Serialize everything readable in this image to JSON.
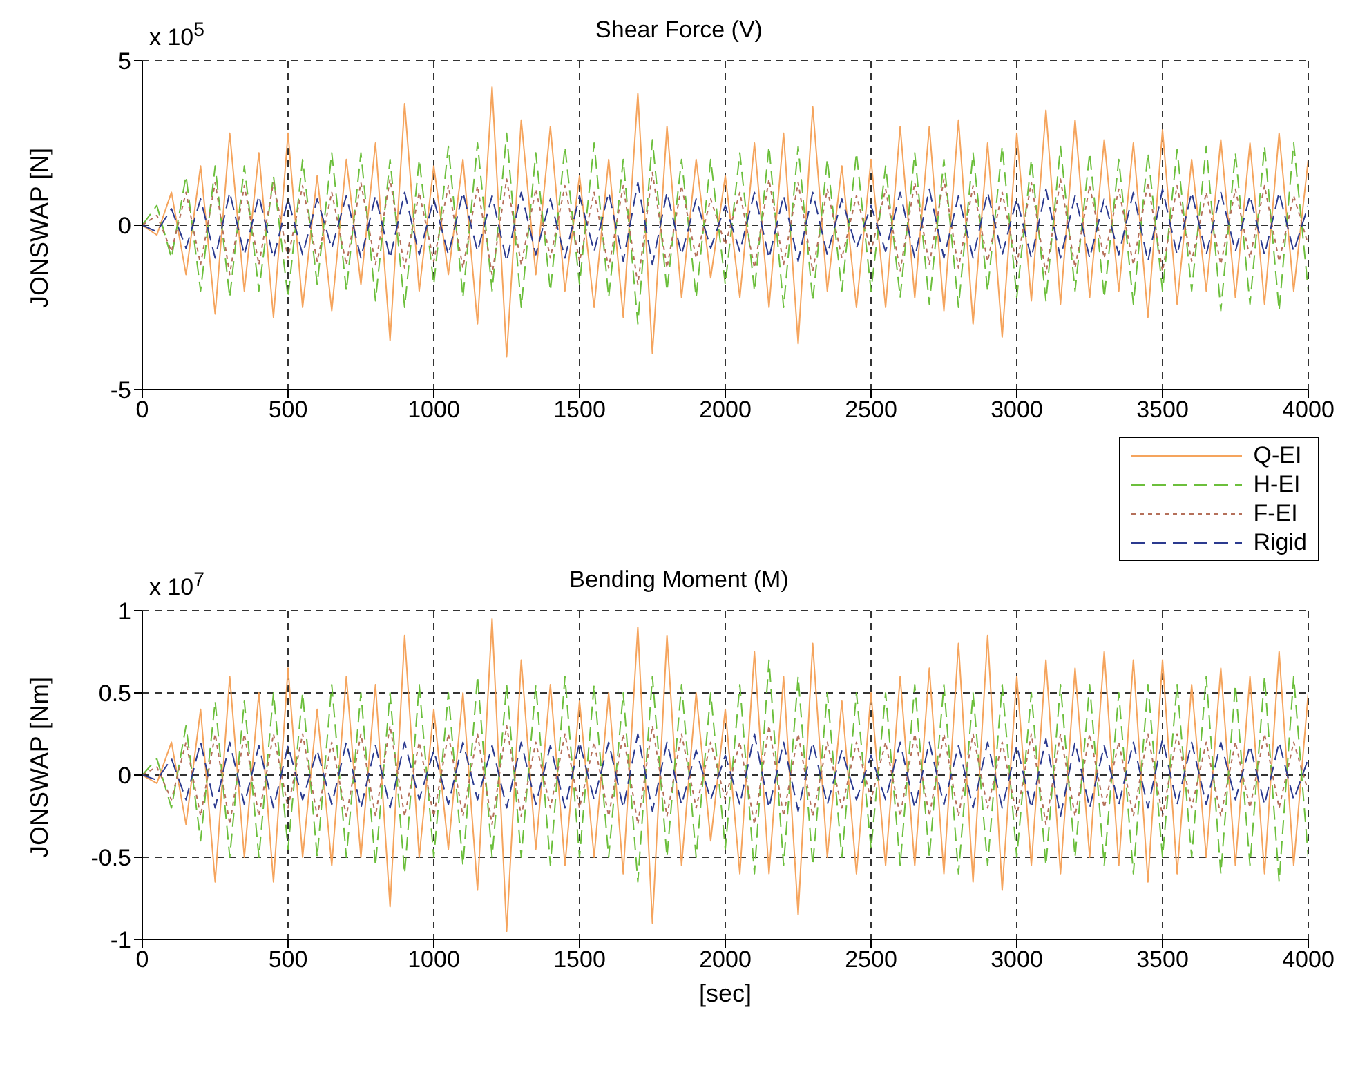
{
  "chart_data": [
    {
      "type": "line",
      "title": "Shear Force (V)",
      "ylabel": "JONSWAP [N]",
      "annotations": [
        "x 10$^{5}$"
      ],
      "xlim": [
        0,
        4000
      ],
      "xticks": [
        0,
        500,
        1000,
        1500,
        2000,
        2500,
        3000,
        3500,
        4000
      ],
      "ylim": [
        -5,
        5
      ],
      "yticks": [
        -5,
        0,
        5
      ],
      "grid": true,
      "legend": "bottom right",
      "x": [
        0,
        50,
        100,
        150,
        200,
        250,
        300,
        350,
        400,
        450,
        500,
        550,
        600,
        650,
        700,
        750,
        800,
        850,
        900,
        950,
        1000,
        1050,
        1100,
        1150,
        1200,
        1250,
        1300,
        1350,
        1400,
        1450,
        1500,
        1550,
        1600,
        1650,
        1700,
        1750,
        1800,
        1850,
        1900,
        1950,
        2000,
        2050,
        2100,
        2150,
        2200,
        2250,
        2300,
        2350,
        2400,
        2450,
        2500,
        2550,
        2600,
        2650,
        2700,
        2750,
        2800,
        2850,
        2900,
        2950,
        3000,
        3050,
        3100,
        3150,
        3200,
        3250,
        3300,
        3350,
        3400,
        3450,
        3500,
        3550,
        3600,
        3650,
        3700,
        3750,
        3800,
        3850,
        3900,
        3950,
        4000
      ],
      "series": [
        {
          "name": "Q-EI",
          "color": "#f5a45d",
          "line_style": "solid",
          "values": [
            0,
            -0.3,
            1.0,
            -1.5,
            1.8,
            -2.7,
            2.8,
            -2.0,
            2.2,
            -2.8,
            2.8,
            -2.5,
            1.5,
            -2.6,
            2.0,
            -1.8,
            2.5,
            -3.5,
            3.7,
            -2.0,
            1.8,
            -1.5,
            2.0,
            -3.0,
            4.2,
            -4.0,
            3.2,
            -1.5,
            3.0,
            -2.0,
            1.5,
            -2.5,
            2.0,
            -2.8,
            4.0,
            -3.9,
            3.0,
            -2.2,
            2.0,
            -1.6,
            1.5,
            -2.2,
            2.5,
            -2.5,
            2.8,
            -3.6,
            3.6,
            -2.0,
            1.8,
            -2.5,
            2.0,
            -2.5,
            3.0,
            -2.2,
            3.0,
            -2.6,
            3.2,
            -3.0,
            2.5,
            -3.4,
            2.8,
            -2.3,
            3.5,
            -2.4,
            3.2,
            -2.2,
            2.6,
            -2.0,
            2.5,
            -2.8,
            2.9,
            -2.4,
            2.0,
            -2.0,
            2.6,
            -2.2,
            2.5,
            -2.4,
            2.8,
            -2.0,
            2.0
          ]
        },
        {
          "name": "H-EI",
          "color": "#6cbf3c",
          "line_style": "dashed",
          "values": [
            0,
            0.6,
            -1.0,
            1.5,
            -2.0,
            1.8,
            -2.2,
            1.8,
            -2.0,
            1.5,
            -2.2,
            2.0,
            -1.8,
            2.2,
            -2.0,
            2.2,
            -2.3,
            2.0,
            -2.5,
            2.0,
            -1.8,
            2.4,
            -2.2,
            2.5,
            -2.0,
            2.8,
            -2.5,
            2.2,
            -2.0,
            2.4,
            -1.8,
            2.5,
            -2.2,
            2.0,
            -3.0,
            2.6,
            -2.0,
            2.0,
            -2.2,
            2.0,
            -1.8,
            2.2,
            -2.0,
            2.4,
            -2.5,
            2.4,
            -2.3,
            2.0,
            -2.0,
            2.2,
            -2.0,
            1.8,
            -2.2,
            2.2,
            -2.4,
            2.0,
            -2.5,
            2.2,
            -2.0,
            2.4,
            -2.2,
            2.0,
            -2.3,
            2.4,
            -2.0,
            2.2,
            -2.2,
            2.0,
            -2.4,
            2.2,
            -2.0,
            2.3,
            -2.0,
            2.4,
            -2.6,
            2.2,
            -2.4,
            2.4,
            -2.6,
            2.5,
            -2.0
          ]
        },
        {
          "name": "F-EI",
          "color": "#b5705a",
          "line_style": "dotted",
          "values": [
            0,
            0.3,
            -0.8,
            1.0,
            -1.2,
            1.3,
            -1.5,
            1.2,
            -1.2,
            1.3,
            -1.0,
            1.2,
            -1.1,
            1.0,
            -1.2,
            1.3,
            -1.2,
            1.4,
            -1.3,
            1.0,
            -1.1,
            1.2,
            -1.3,
            1.2,
            -1.5,
            1.4,
            -1.2,
            1.1,
            -1.0,
            1.2,
            -1.1,
            1.0,
            -1.3,
            1.2,
            -1.8,
            1.6,
            -1.3,
            1.2,
            -1.0,
            0.8,
            -0.6,
            1.0,
            -1.3,
            1.4,
            -1.2,
            1.3,
            -1.4,
            1.1,
            -1.0,
            0.9,
            -0.8,
            1.1,
            -1.4,
            1.3,
            -1.2,
            1.4,
            -1.3,
            1.2,
            -1.1,
            1.0,
            -1.2,
            1.3,
            -1.5,
            1.4,
            -1.3,
            1.2,
            -1.0,
            1.1,
            -1.2,
            1.3,
            -1.4,
            1.2,
            -1.1,
            1.0,
            -1.2,
            1.1,
            -1.0,
            1.2,
            -1.1,
            0.9,
            -0.6
          ]
        },
        {
          "name": "Rigid",
          "color": "#2b3a8f",
          "line_style": "dashed",
          "values": [
            0,
            -0.2,
            0.5,
            -0.7,
            0.8,
            -1.0,
            1.0,
            -0.9,
            0.9,
            -1.0,
            0.8,
            -0.9,
            0.8,
            -0.7,
            0.9,
            -1.0,
            0.9,
            -1.0,
            1.0,
            -0.9,
            0.8,
            -0.9,
            1.0,
            -0.8,
            0.9,
            -1.1,
            1.0,
            -0.9,
            0.8,
            -1.0,
            0.9,
            -0.8,
            1.0,
            -1.1,
            1.3,
            -1.2,
            1.0,
            -0.9,
            0.8,
            -0.7,
            0.6,
            -0.8,
            1.0,
            -1.0,
            0.9,
            -1.1,
            1.0,
            -0.9,
            0.8,
            -0.7,
            0.6,
            -0.8,
            1.0,
            -1.0,
            1.1,
            -1.0,
            0.9,
            -1.0,
            1.0,
            -0.9,
            0.8,
            -1.0,
            1.1,
            -1.0,
            0.9,
            -1.0,
            0.8,
            -0.9,
            1.0,
            -1.1,
            1.1,
            -0.9,
            1.0,
            -0.9,
            1.0,
            -0.8,
            0.9,
            -0.9,
            1.0,
            -0.8,
            0.6
          ]
        }
      ]
    },
    {
      "type": "line",
      "title": "Bending Moment (M)",
      "xlabel": "[sec]",
      "ylabel": "JONSWAP [Nm]",
      "annotations": [
        "x 10$^{7}$"
      ],
      "xlim": [
        0,
        4000
      ],
      "xticks": [
        0,
        500,
        1000,
        1500,
        2000,
        2500,
        3000,
        3500,
        4000
      ],
      "ylim": [
        -1,
        1
      ],
      "yticks": [
        -1,
        -0.5,
        0,
        0.5,
        1
      ],
      "grid": true,
      "x": [
        0,
        50,
        100,
        150,
        200,
        250,
        300,
        350,
        400,
        450,
        500,
        550,
        600,
        650,
        700,
        750,
        800,
        850,
        900,
        950,
        1000,
        1050,
        1100,
        1150,
        1200,
        1250,
        1300,
        1350,
        1400,
        1450,
        1500,
        1550,
        1600,
        1650,
        1700,
        1750,
        1800,
        1850,
        1900,
        1950,
        2000,
        2050,
        2100,
        2150,
        2200,
        2250,
        2300,
        2350,
        2400,
        2450,
        2500,
        2550,
        2600,
        2650,
        2700,
        2750,
        2800,
        2850,
        2900,
        2950,
        3000,
        3050,
        3100,
        3150,
        3200,
        3250,
        3300,
        3350,
        3400,
        3450,
        3500,
        3550,
        3600,
        3650,
        3700,
        3750,
        3800,
        3850,
        3900,
        3950,
        4000
      ],
      "series": [
        {
          "color": "#f5a45d",
          "line_style": "solid",
          "values": [
            0,
            -0.05,
            0.2,
            -0.3,
            0.4,
            -0.65,
            0.6,
            -0.5,
            0.5,
            -0.65,
            0.65,
            -0.5,
            0.4,
            -0.55,
            0.6,
            -0.5,
            0.55,
            -0.8,
            0.85,
            -0.5,
            0.4,
            -0.45,
            0.5,
            -0.7,
            0.95,
            -0.95,
            0.7,
            -0.45,
            0.55,
            -0.55,
            0.45,
            -0.5,
            0.5,
            -0.6,
            0.9,
            -0.9,
            0.85,
            -0.55,
            0.5,
            -0.4,
            0.4,
            -0.6,
            0.75,
            -0.6,
            0.6,
            -0.85,
            0.8,
            -0.5,
            0.45,
            -0.6,
            0.5,
            -0.55,
            0.6,
            -0.55,
            0.65,
            -0.6,
            0.8,
            -0.65,
            0.85,
            -0.7,
            0.6,
            -0.55,
            0.7,
            -0.6,
            0.65,
            -0.5,
            0.75,
            -0.55,
            0.7,
            -0.65,
            0.7,
            -0.6,
            0.55,
            -0.5,
            0.65,
            -0.55,
            0.6,
            -0.6,
            0.75,
            -0.55,
            0.5
          ]
        },
        {
          "color": "#6cbf3c",
          "line_style": "dashed",
          "values": [
            0,
            0.1,
            -0.2,
            0.3,
            -0.4,
            0.45,
            -0.5,
            0.45,
            -0.5,
            0.5,
            -0.45,
            0.5,
            -0.5,
            0.55,
            -0.5,
            0.5,
            -0.55,
            0.5,
            -0.6,
            0.55,
            -0.5,
            0.5,
            -0.55,
            0.6,
            -0.5,
            0.55,
            -0.5,
            0.55,
            -0.55,
            0.6,
            -0.5,
            0.55,
            -0.5,
            0.5,
            -0.65,
            0.6,
            -0.5,
            0.55,
            -0.5,
            0.5,
            -0.45,
            0.55,
            -0.6,
            0.7,
            -0.55,
            0.6,
            -0.55,
            0.5,
            -0.5,
            0.5,
            -0.45,
            0.5,
            -0.55,
            0.55,
            -0.5,
            0.55,
            -0.6,
            0.5,
            -0.55,
            0.55,
            -0.5,
            0.5,
            -0.55,
            0.55,
            -0.5,
            0.55,
            -0.55,
            0.5,
            -0.6,
            0.55,
            -0.5,
            0.55,
            -0.5,
            0.6,
            -0.6,
            0.55,
            -0.55,
            0.6,
            -0.65,
            0.6,
            -0.5
          ]
        },
        {
          "color": "#b5705a",
          "line_style": "dotted",
          "values": [
            0,
            0.05,
            -0.15,
            0.2,
            -0.25,
            0.25,
            -0.3,
            0.25,
            -0.25,
            0.25,
            -0.2,
            0.25,
            -0.25,
            0.2,
            -0.25,
            0.25,
            -0.25,
            0.3,
            -0.25,
            0.2,
            -0.25,
            0.25,
            -0.25,
            0.25,
            -0.3,
            0.3,
            -0.25,
            0.2,
            -0.2,
            0.25,
            -0.2,
            0.2,
            -0.25,
            0.25,
            -0.3,
            0.3,
            -0.25,
            0.25,
            -0.2,
            0.2,
            -0.15,
            0.2,
            -0.3,
            0.3,
            -0.25,
            0.25,
            -0.25,
            0.2,
            -0.2,
            0.2,
            -0.15,
            0.2,
            -0.25,
            0.25,
            -0.25,
            0.25,
            -0.25,
            0.25,
            -0.2,
            0.2,
            -0.25,
            0.25,
            -0.3,
            0.25,
            -0.25,
            0.25,
            -0.2,
            0.2,
            -0.25,
            0.25,
            -0.25,
            0.25,
            -0.2,
            0.2,
            -0.25,
            0.2,
            -0.2,
            0.25,
            -0.2,
            0.2,
            -0.1
          ]
        },
        {
          "color": "#2b3a8f",
          "line_style": "dashed",
          "values": [
            0,
            -0.03,
            0.1,
            -0.15,
            0.2,
            -0.2,
            0.2,
            -0.18,
            0.18,
            -0.2,
            0.18,
            -0.15,
            0.15,
            -0.18,
            0.2,
            -0.2,
            0.18,
            -0.2,
            0.2,
            -0.15,
            0.15,
            -0.18,
            0.2,
            -0.15,
            0.18,
            -0.2,
            0.2,
            -0.18,
            0.18,
            -0.2,
            0.2,
            -0.15,
            0.2,
            -0.2,
            0.25,
            -0.22,
            0.2,
            -0.18,
            0.15,
            -0.15,
            0.12,
            -0.18,
            0.25,
            -0.2,
            0.2,
            -0.22,
            0.2,
            -0.18,
            0.15,
            -0.15,
            0.12,
            -0.15,
            0.2,
            -0.2,
            0.2,
            -0.18,
            0.18,
            -0.2,
            0.2,
            -0.2,
            0.18,
            -0.2,
            0.22,
            -0.25,
            0.2,
            -0.2,
            0.18,
            -0.18,
            0.2,
            -0.2,
            0.22,
            -0.18,
            0.2,
            -0.18,
            0.2,
            -0.15,
            0.18,
            -0.18,
            0.2,
            -0.15,
            0.1
          ]
        }
      ]
    }
  ]
}
